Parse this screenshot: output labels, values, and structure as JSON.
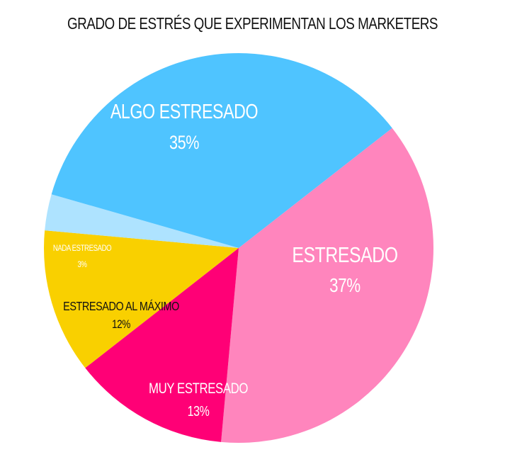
{
  "chart_data": {
    "type": "pie",
    "title": "GRADO DE ESTRÉS QUE EXPERIMENTAN LOS MARKETERS",
    "slices": [
      {
        "label": "ESTRESADO",
        "value": 37,
        "value_label": "37%",
        "color": "#ff85bd",
        "text_color": "#ffffff"
      },
      {
        "label": "MUY ESTRESADO",
        "value": 13,
        "value_label": "13%",
        "color": "#ff0076",
        "text_color": "#ffffff"
      },
      {
        "label": "ESTRESADO AL MÁXIMO",
        "value": 12,
        "value_label": "12%",
        "color": "#f9d000",
        "text_color": "#111111"
      },
      {
        "label": "NADA ESTRESADO",
        "value": 3,
        "value_label": "3%",
        "color": "#aee3ff",
        "text_color": "#ffffff"
      },
      {
        "label": "ALGO ESTRESADO",
        "value": 35,
        "value_label": "35%",
        "color": "#4fc4ff",
        "text_color": "#ffffff"
      }
    ]
  }
}
